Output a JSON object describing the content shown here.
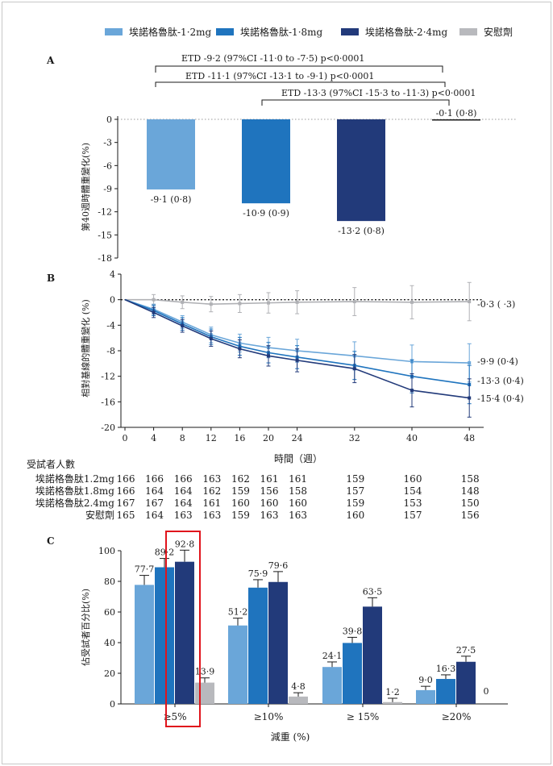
{
  "legend": {
    "items": [
      {
        "label": "埃諾格魯肽-1·2mg",
        "color": "#6aa6d9"
      },
      {
        "label": "埃諾格魯肽-1·8mg",
        "color": "#1f74be"
      },
      {
        "label": "埃諾格魯肽-2·4mg",
        "color": "#223a7a"
      },
      {
        "label": "安慰劑",
        "color": "#b8b9bd"
      }
    ]
  },
  "panels": {
    "a": "A",
    "b": "B",
    "c": "C"
  },
  "chart_data": [
    {
      "panel": "A",
      "type": "bar",
      "ylabel": "第40週時體重變化(%)",
      "ylim": [
        -18,
        0
      ],
      "yticks": [
        "0",
        "-3",
        "-6",
        "-9",
        "-12",
        "-15",
        "-18"
      ],
      "series": [
        {
          "name": "埃諾格魯肽-1·2mg",
          "value": -9.1,
          "label": "-9·1 (0·8)"
        },
        {
          "name": "埃諾格魯肽-1·8mg",
          "value": -10.9,
          "label": "-10·9 (0·9)"
        },
        {
          "name": "埃諾格魯肽-2·4mg",
          "value": -13.2,
          "label": "-13·2 (0·8)"
        },
        {
          "name": "安慰劑",
          "value": -0.1,
          "label": "-0·1 (0·8)"
        }
      ],
      "annotations": [
        "ETD -9·2 (97%CI -11·0 to -7·5) p<0·0001",
        "ETD -11·1 (97%CI -13·1 to -9·1) p<0·0001",
        "ETD -13·3 (97%CI -15·3 to -11·3) p<0·0001"
      ]
    },
    {
      "panel": "B",
      "type": "line",
      "xlabel": "時間（週）",
      "ylabel": "相對基線的體重變化 (%)",
      "x": [
        0,
        4,
        8,
        12,
        16,
        20,
        24,
        32,
        40,
        48
      ],
      "xticks": [
        "0",
        "4",
        "8",
        "12",
        "16",
        "20",
        "24",
        "32",
        "40",
        "48"
      ],
      "ylim": [
        -20,
        4
      ],
      "yticks": [
        "4",
        "0",
        "-4",
        "-8",
        "-12",
        "-16",
        "-20"
      ],
      "series": [
        {
          "name": "安慰劑",
          "color": "#b0b1b5",
          "values": [
            0,
            0,
            -0.4,
            -0.7,
            -0.6,
            -0.5,
            -0.4,
            -0.3,
            -0.4,
            -0.3
          ],
          "end_label": "-0·3 (  ·3)"
        },
        {
          "name": "埃諾格魯肽-1·2mg",
          "color": "#6aa6d9",
          "values": [
            0,
            -1.5,
            -3.5,
            -5.5,
            -6.8,
            -7.5,
            -8.0,
            -8.8,
            -9.7,
            -9.9
          ],
          "end_label": "-9·9 (0·4)"
        },
        {
          "name": "埃諾格魯肽-1·8mg",
          "color": "#1f74be",
          "values": [
            0,
            -1.7,
            -3.8,
            -5.8,
            -7.3,
            -8.3,
            -9.0,
            -10.3,
            -12.0,
            -13.3
          ],
          "end_label": "-13·3 (0·4)"
        },
        {
          "name": "埃諾格魯肽-2·4mg",
          "color": "#223a7a",
          "values": [
            0,
            -2.0,
            -4.1,
            -6.1,
            -7.7,
            -8.8,
            -9.5,
            -10.8,
            -14.2,
            -15.4
          ],
          "end_label": "-15·4 (0·4)"
        }
      ]
    },
    {
      "panel": "C",
      "type": "bar",
      "xlabel": "減重 (%)",
      "ylabel": "佔受試者百分比(%)",
      "ylim": [
        0,
        100
      ],
      "yticks": [
        "0",
        "20",
        "40",
        "60",
        "80",
        "100"
      ],
      "categories": [
        "≥5%",
        "≥10%",
        "≥ 15%",
        "≥20%"
      ],
      "series": [
        {
          "name": "埃諾格魯肽-1·2mg",
          "values": [
            77.7,
            51.2,
            24.1,
            9.0
          ],
          "labels": [
            "77·7",
            "51·2",
            "24·1",
            "9·0"
          ]
        },
        {
          "name": "埃諾格魯肽-1·8mg",
          "values": [
            89.2,
            75.9,
            39.8,
            16.3
          ],
          "labels": [
            "89·2",
            "75·9",
            "39·8",
            "16·3"
          ]
        },
        {
          "name": "埃諾格魯肽-2·4mg",
          "values": [
            92.8,
            79.6,
            63.5,
            27.5
          ],
          "labels": [
            "92·8",
            "79·6",
            "63·5",
            "27·5"
          ]
        },
        {
          "name": "安慰劑",
          "values": [
            13.9,
            4.8,
            1.2,
            0
          ],
          "labels": [
            "13·9",
            "4·8",
            "1·2",
            "0"
          ]
        }
      ]
    }
  ],
  "subjects": {
    "title": "受試者人數",
    "rows": [
      {
        "label": "埃諾格魯肽1.2mg",
        "values": [
          "166",
          "166",
          "166",
          "163",
          "162",
          "161",
          "161",
          "159",
          "160",
          "158"
        ]
      },
      {
        "label": "埃諾格魯肽1.8mg",
        "values": [
          "166",
          "164",
          "164",
          "162",
          "159",
          "156",
          "158",
          "157",
          "154",
          "148"
        ]
      },
      {
        "label": "埃諾格魯肽2.4mg",
        "values": [
          "167",
          "167",
          "164",
          "161",
          "160",
          "160",
          "160",
          "159",
          "153",
          "150"
        ]
      },
      {
        "label": "安慰劑",
        "values": [
          "165",
          "164",
          "163",
          "163",
          "159",
          "163",
          "163",
          "160",
          "157",
          "156"
        ]
      }
    ]
  },
  "highlight_color": "#e0141c"
}
